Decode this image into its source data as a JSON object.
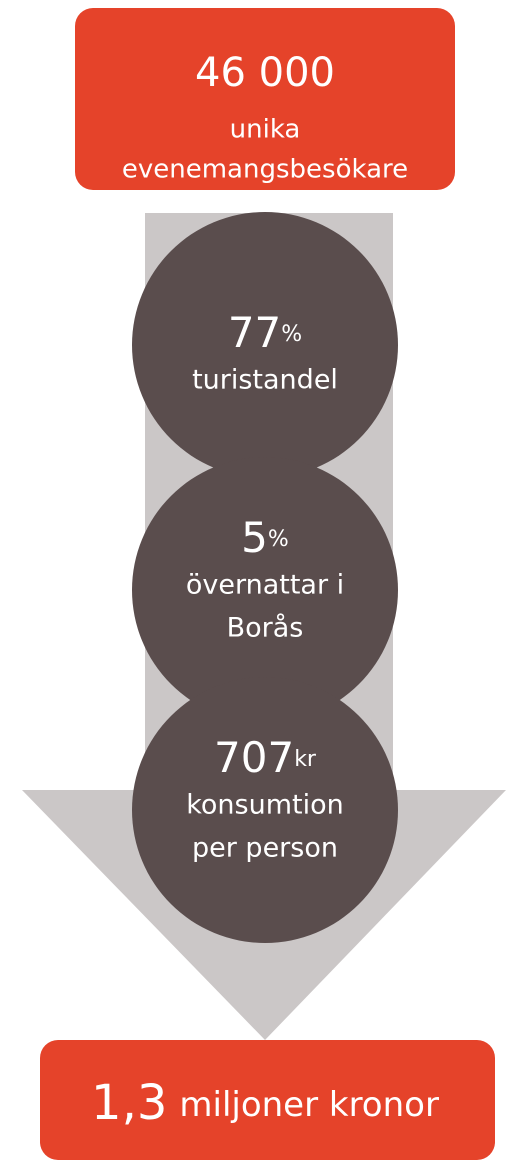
{
  "header": {
    "value": "46 000",
    "lines": [
      "unika",
      "evenemangsbesökare"
    ]
  },
  "steps": [
    {
      "value": "77",
      "unit": "%",
      "lines": [
        "turistandel"
      ]
    },
    {
      "value": "5",
      "unit": "%",
      "lines": [
        "övernattar i",
        "Borås"
      ]
    },
    {
      "value": "707",
      "unit": "kr",
      "lines": [
        "konsumtion",
        "per person"
      ]
    }
  ],
  "result": {
    "value": "1,3",
    "label": "miljoner kronor"
  }
}
